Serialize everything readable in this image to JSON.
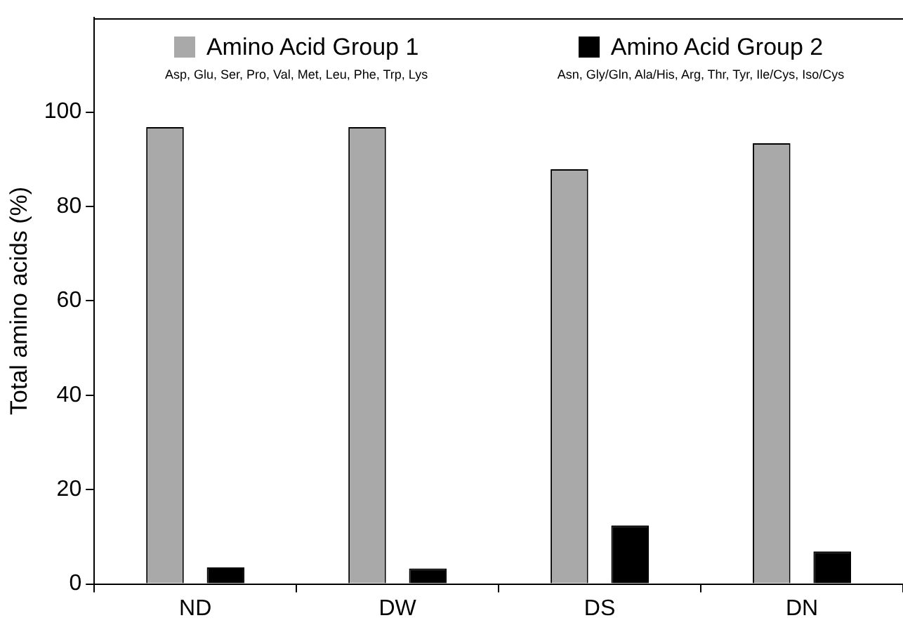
{
  "chart_data": {
    "type": "bar",
    "ylabel": "Total amino acids (%)",
    "categories": [
      "ND",
      "DW",
      "DS",
      "DN"
    ],
    "series": [
      {
        "name": "Amino Acid Group 1",
        "color": "#a9a9a9",
        "values": [
          96.8,
          96.8,
          87.9,
          93.4
        ]
      },
      {
        "name": "Amino Acid Group 2",
        "color": "#000000",
        "values": [
          3.5,
          3.3,
          12.4,
          6.9
        ]
      }
    ],
    "annotations": [
      "Asp, Glu, Ser, Pro, Val, Met, Leu, Phe, Trp, Lys",
      "Asn, Gly/Gln, Ala/His, Arg, Thr, Tyr, Ile/Cys, Iso/Cys"
    ],
    "ylim": [
      0,
      120
    ],
    "yticks": [
      0,
      20,
      40,
      60,
      80,
      100
    ],
    "grid": false,
    "legend": "top"
  }
}
